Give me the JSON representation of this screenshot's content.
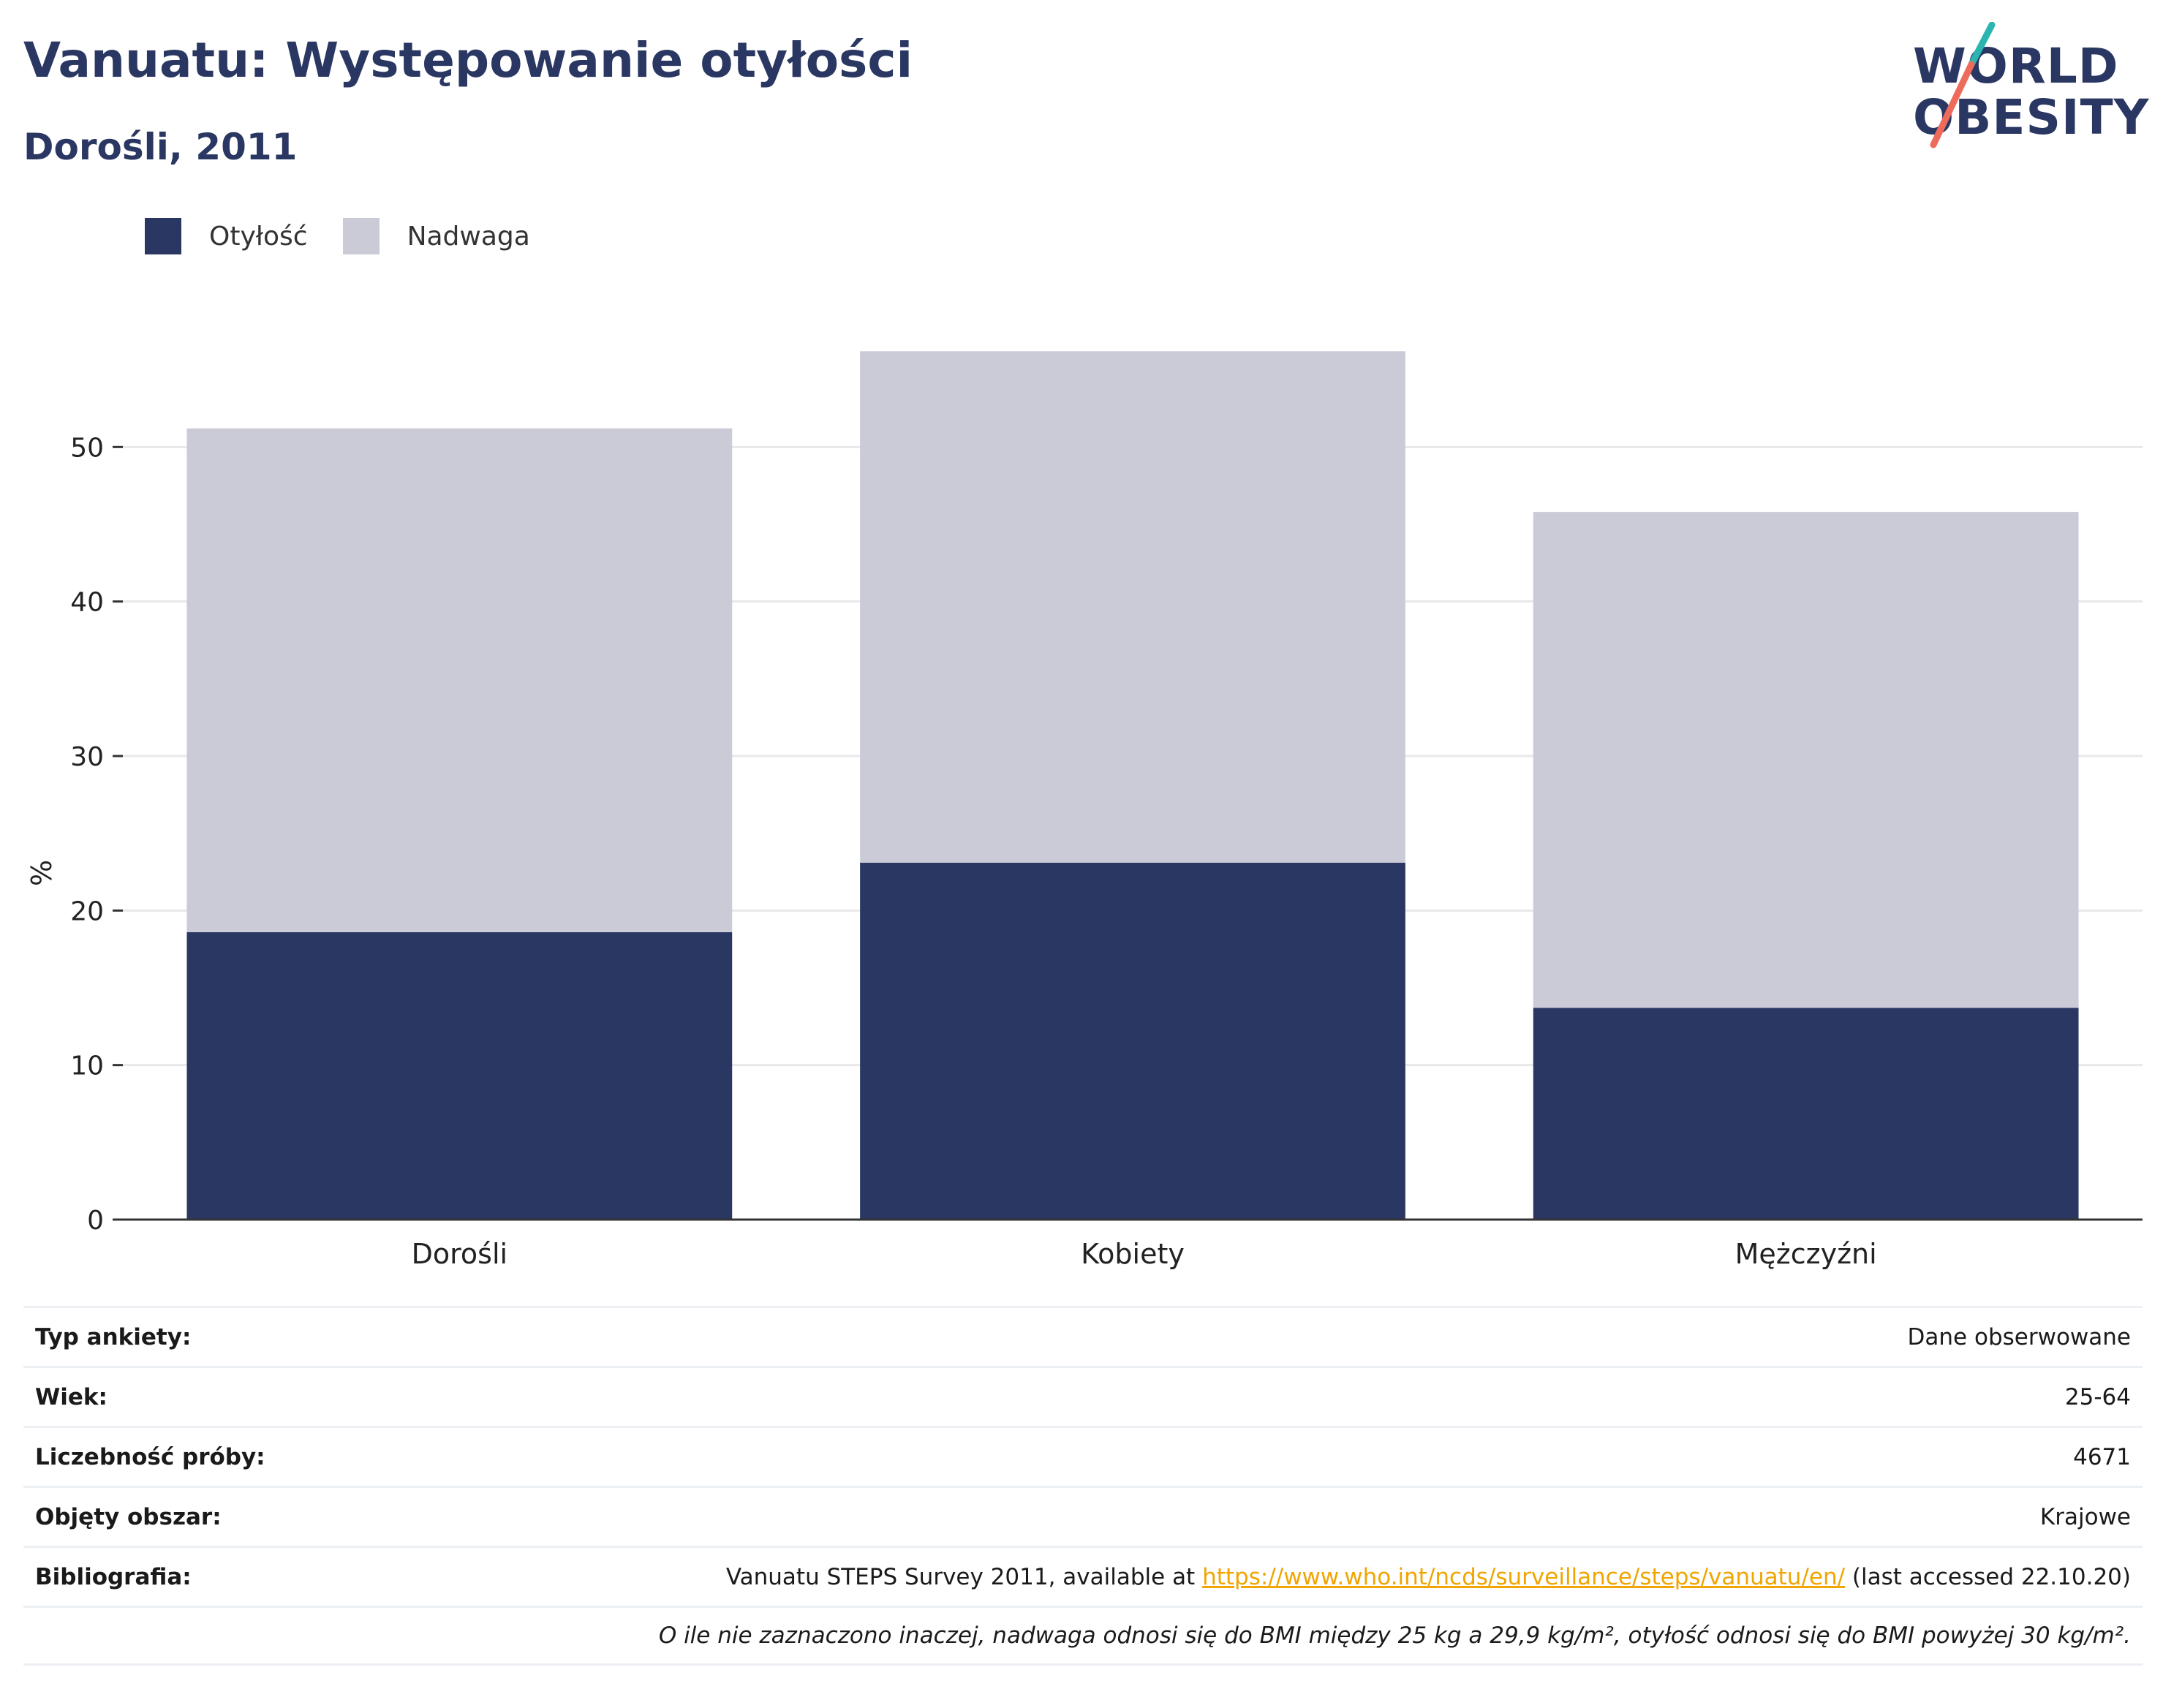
{
  "header": {
    "title": "Vanuatu: Występowanie otyłości",
    "subtitle": "Dorośli, 2011"
  },
  "logo": {
    "line1": "WORLD",
    "line2": "OBESITY",
    "colors": {
      "text": "#2a3762",
      "slash_top": "#2bb5b0",
      "slash_bottom": "#ee6b5c"
    }
  },
  "colors": {
    "obesity": "#2a3762",
    "overweight": "#cacbd7",
    "grid": "#e8e8ec",
    "axis": "#333333",
    "link": "#f0a500"
  },
  "chart_data": {
    "type": "bar",
    "stacked": true,
    "categories": [
      "Dorośli",
      "Kobiety",
      "Mężczyźni"
    ],
    "series": [
      {
        "name": "Otyłość",
        "values": [
          18.6,
          23.1,
          13.7
        ]
      },
      {
        "name": "Nadwaga",
        "values": [
          32.6,
          33.1,
          32.1
        ]
      }
    ],
    "ylabel": "%",
    "xlabel": "",
    "ylim": [
      0,
      60
    ],
    "yticks": [
      0,
      10,
      20,
      30,
      40,
      50
    ],
    "grid": true,
    "legend_position": "top-left"
  },
  "info": {
    "rows": [
      {
        "label": "Typ ankiety:",
        "value": "Dane obserwowane"
      },
      {
        "label": "Wiek:",
        "value": "25-64"
      },
      {
        "label": "Liczebność próby:",
        "value": "4671"
      },
      {
        "label": "Objęty obszar:",
        "value": "Krajowe"
      }
    ],
    "bibliography": {
      "label": "Bibliografia:",
      "prefix": "Vanuatu STEPS Survey 2011, available at ",
      "link": "https://www.who.int/ncds/surveillance/steps/vanuatu/en/",
      "suffix": " (last accessed 22.10.20)"
    },
    "note": "O ile nie zaznaczono inaczej, nadwaga odnosi się do BMI między 25 kg a 29,9 kg/m², otyłość odnosi się do BMI powyżej 30 kg/m²."
  }
}
